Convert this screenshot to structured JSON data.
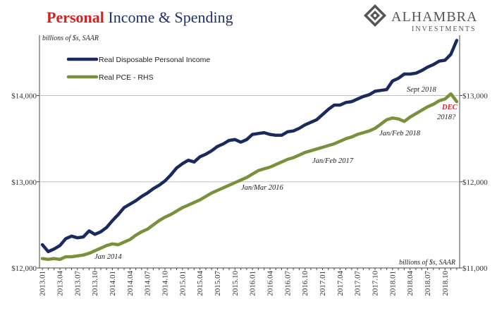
{
  "title": {
    "part1": "Personal",
    "part2": " Income & Spending"
  },
  "logo": {
    "name": "ALHAMBRA",
    "sub": "INVESTMENTS"
  },
  "chart_data": {
    "type": "line",
    "ylabel_left_note": "billions of $s, SAAR",
    "ylabel_right_note": "billions of $s, SAAR",
    "ylim_left": [
      12000,
      14700
    ],
    "ylim_right": [
      11000,
      13700
    ],
    "yticks_left": [
      "$12,000",
      "$13,000",
      "$14,000"
    ],
    "yticks_right": [
      "$11,000",
      "$12,000",
      "$13,000"
    ],
    "ytick_values": [
      0,
      1000,
      2000
    ],
    "x": [
      "2013.01",
      "2013.02",
      "2013.03",
      "2013.04",
      "2013.05",
      "2013.06",
      "2013.07",
      "2013.08",
      "2013.09",
      "2013.10",
      "2013.11",
      "2013.12",
      "2014.01",
      "2014.02",
      "2014.03",
      "2014.04",
      "2014.05",
      "2014.06",
      "2014.07",
      "2014.08",
      "2014.09",
      "2014.10",
      "2014.11",
      "2014.12",
      "2015.01",
      "2015.02",
      "2015.03",
      "2015.04",
      "2015.05",
      "2015.06",
      "2015.07",
      "2015.08",
      "2015.09",
      "2015.10",
      "2015.11",
      "2015.12",
      "2016.01",
      "2016.02",
      "2016.03",
      "2016.04",
      "2016.05",
      "2016.06",
      "2016.07",
      "2016.08",
      "2016.09",
      "2016.10",
      "2016.11",
      "2016.12",
      "2017.01",
      "2017.02",
      "2017.03",
      "2017.04",
      "2017.05",
      "2017.06",
      "2017.07",
      "2017.08",
      "2017.09",
      "2017.10",
      "2017.11",
      "2017.12",
      "2018.01",
      "2018.02",
      "2018.03",
      "2018.04",
      "2018.05",
      "2018.06",
      "2018.07",
      "2018.08",
      "2018.09",
      "2018.10",
      "2018.11",
      "2018.12"
    ],
    "xtick_labels": [
      "2013.01",
      "2013.04",
      "2013.07",
      "2013.10",
      "2014.01",
      "2014.04",
      "2014.07",
      "2014.10",
      "2015.01",
      "2015.04",
      "2015.07",
      "2015.10",
      "2016.01",
      "2016.04",
      "2016.07",
      "2016.10",
      "2017.01",
      "2017.04",
      "2017.07",
      "2017.10",
      "2018.01",
      "2018.04",
      "2018.07",
      "2018.10"
    ],
    "series": [
      {
        "name": "Real Disposable Personal Income",
        "axis": "left",
        "color": "#1b2a5c",
        "values": [
          12270,
          12190,
          12220,
          12260,
          12340,
          12370,
          12350,
          12360,
          12430,
          12390,
          12420,
          12470,
          12550,
          12620,
          12700,
          12740,
          12780,
          12830,
          12870,
          12920,
          12960,
          13010,
          13080,
          13160,
          13210,
          13250,
          13230,
          13290,
          13320,
          13360,
          13410,
          13440,
          13480,
          13490,
          13460,
          13490,
          13550,
          13560,
          13570,
          13550,
          13540,
          13540,
          13580,
          13590,
          13620,
          13660,
          13690,
          13720,
          13780,
          13840,
          13890,
          13890,
          13920,
          13930,
          13960,
          13990,
          14010,
          14050,
          14060,
          14070,
          14170,
          14200,
          14250,
          14250,
          14260,
          14290,
          14330,
          14360,
          14400,
          14410,
          14480,
          14640
        ]
      },
      {
        "name": "Real PCE - RHS",
        "axis": "right",
        "color": "#78913a",
        "values": [
          11110,
          11100,
          11110,
          11100,
          11130,
          11130,
          11140,
          11150,
          11170,
          11200,
          11230,
          11260,
          11280,
          11270,
          11300,
          11330,
          11380,
          11420,
          11450,
          11500,
          11550,
          11590,
          11620,
          11660,
          11700,
          11730,
          11760,
          11790,
          11830,
          11870,
          11900,
          11930,
          11960,
          11990,
          12020,
          12050,
          12090,
          12130,
          12150,
          12170,
          12200,
          12230,
          12260,
          12280,
          12310,
          12340,
          12360,
          12380,
          12400,
          12420,
          12440,
          12470,
          12500,
          12520,
          12550,
          12570,
          12590,
          12620,
          12670,
          12720,
          12740,
          12730,
          12700,
          12750,
          12790,
          12830,
          12870,
          12900,
          12940,
          12960,
          13020,
          12930
        ]
      }
    ],
    "annotations": [
      {
        "text": "Jan 2014",
        "at": "2014.01"
      },
      {
        "text": "Jan/Mar 2016",
        "at": "2016.03"
      },
      {
        "text": "Jan/Feb 2017",
        "at": "2017.02"
      },
      {
        "text": "Jan/Feb 2018",
        "at": "2018.02"
      },
      {
        "text": "Sept 2018",
        "at": "2018.09"
      },
      {
        "text": "DEC",
        "at": "2018.12",
        "color": "#d2201f"
      },
      {
        "text": "2018?",
        "at": "2018.12"
      }
    ]
  }
}
